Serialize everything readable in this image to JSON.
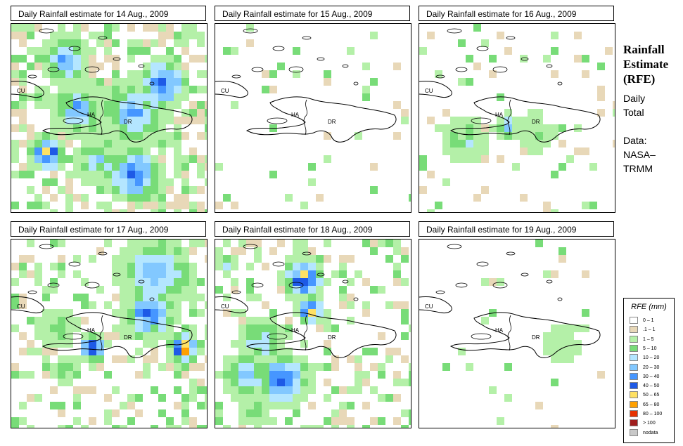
{
  "panels": [
    {
      "title": "Daily Rainfall estimate for  14 Aug., 2009"
    },
    {
      "title": "Daily Rainfall estimate for  15 Aug., 2009"
    },
    {
      "title": "Daily Rainfall estimate for  16 Aug., 2009"
    },
    {
      "title": "Daily Rainfall estimate for  17 Aug., 2009"
    },
    {
      "title": "Daily Rainfall estimate for  18 Aug., 2009"
    },
    {
      "title": "Daily Rainfall estimate for  19 Aug., 2009"
    }
  ],
  "map_labels": {
    "cu": "CU",
    "ha": "HA",
    "dr": "DR"
  },
  "side": {
    "title_line1": "Rainfall",
    "title_line2": "Estimate",
    "title_line3": "(RFE)",
    "daily_line1": "Daily",
    "daily_line2": "Total",
    "data_line1": "Data:",
    "data_line2": "NASA–",
    "data_line3": "TRMM"
  },
  "legend": {
    "title": "RFE (mm)",
    "items": [
      {
        "label": "0 – 1",
        "color": "#ffffff"
      },
      {
        "label": ".1 – 1",
        "color": "#e8d8b8"
      },
      {
        "label": "1 – 5",
        "color": "#b4f0a8"
      },
      {
        "label": "5 – 10",
        "color": "#78dc78"
      },
      {
        "label": "10 – 20",
        "color": "#b4e6ff"
      },
      {
        "label": "20 – 30",
        "color": "#82c8ff"
      },
      {
        "label": "30 – 40",
        "color": "#4696ff"
      },
      {
        "label": "40 – 50",
        "color": "#1e5ae6"
      },
      {
        "label": "50 – 65",
        "color": "#ffe164"
      },
      {
        "label": "65 – 80",
        "color": "#ffa000"
      },
      {
        "label": "80 – 100",
        "color": "#e63200"
      },
      {
        "label": "> 100",
        "color": "#a01e1e"
      },
      {
        "label": "nodata",
        "color": "#c8c8c8"
      }
    ]
  }
}
